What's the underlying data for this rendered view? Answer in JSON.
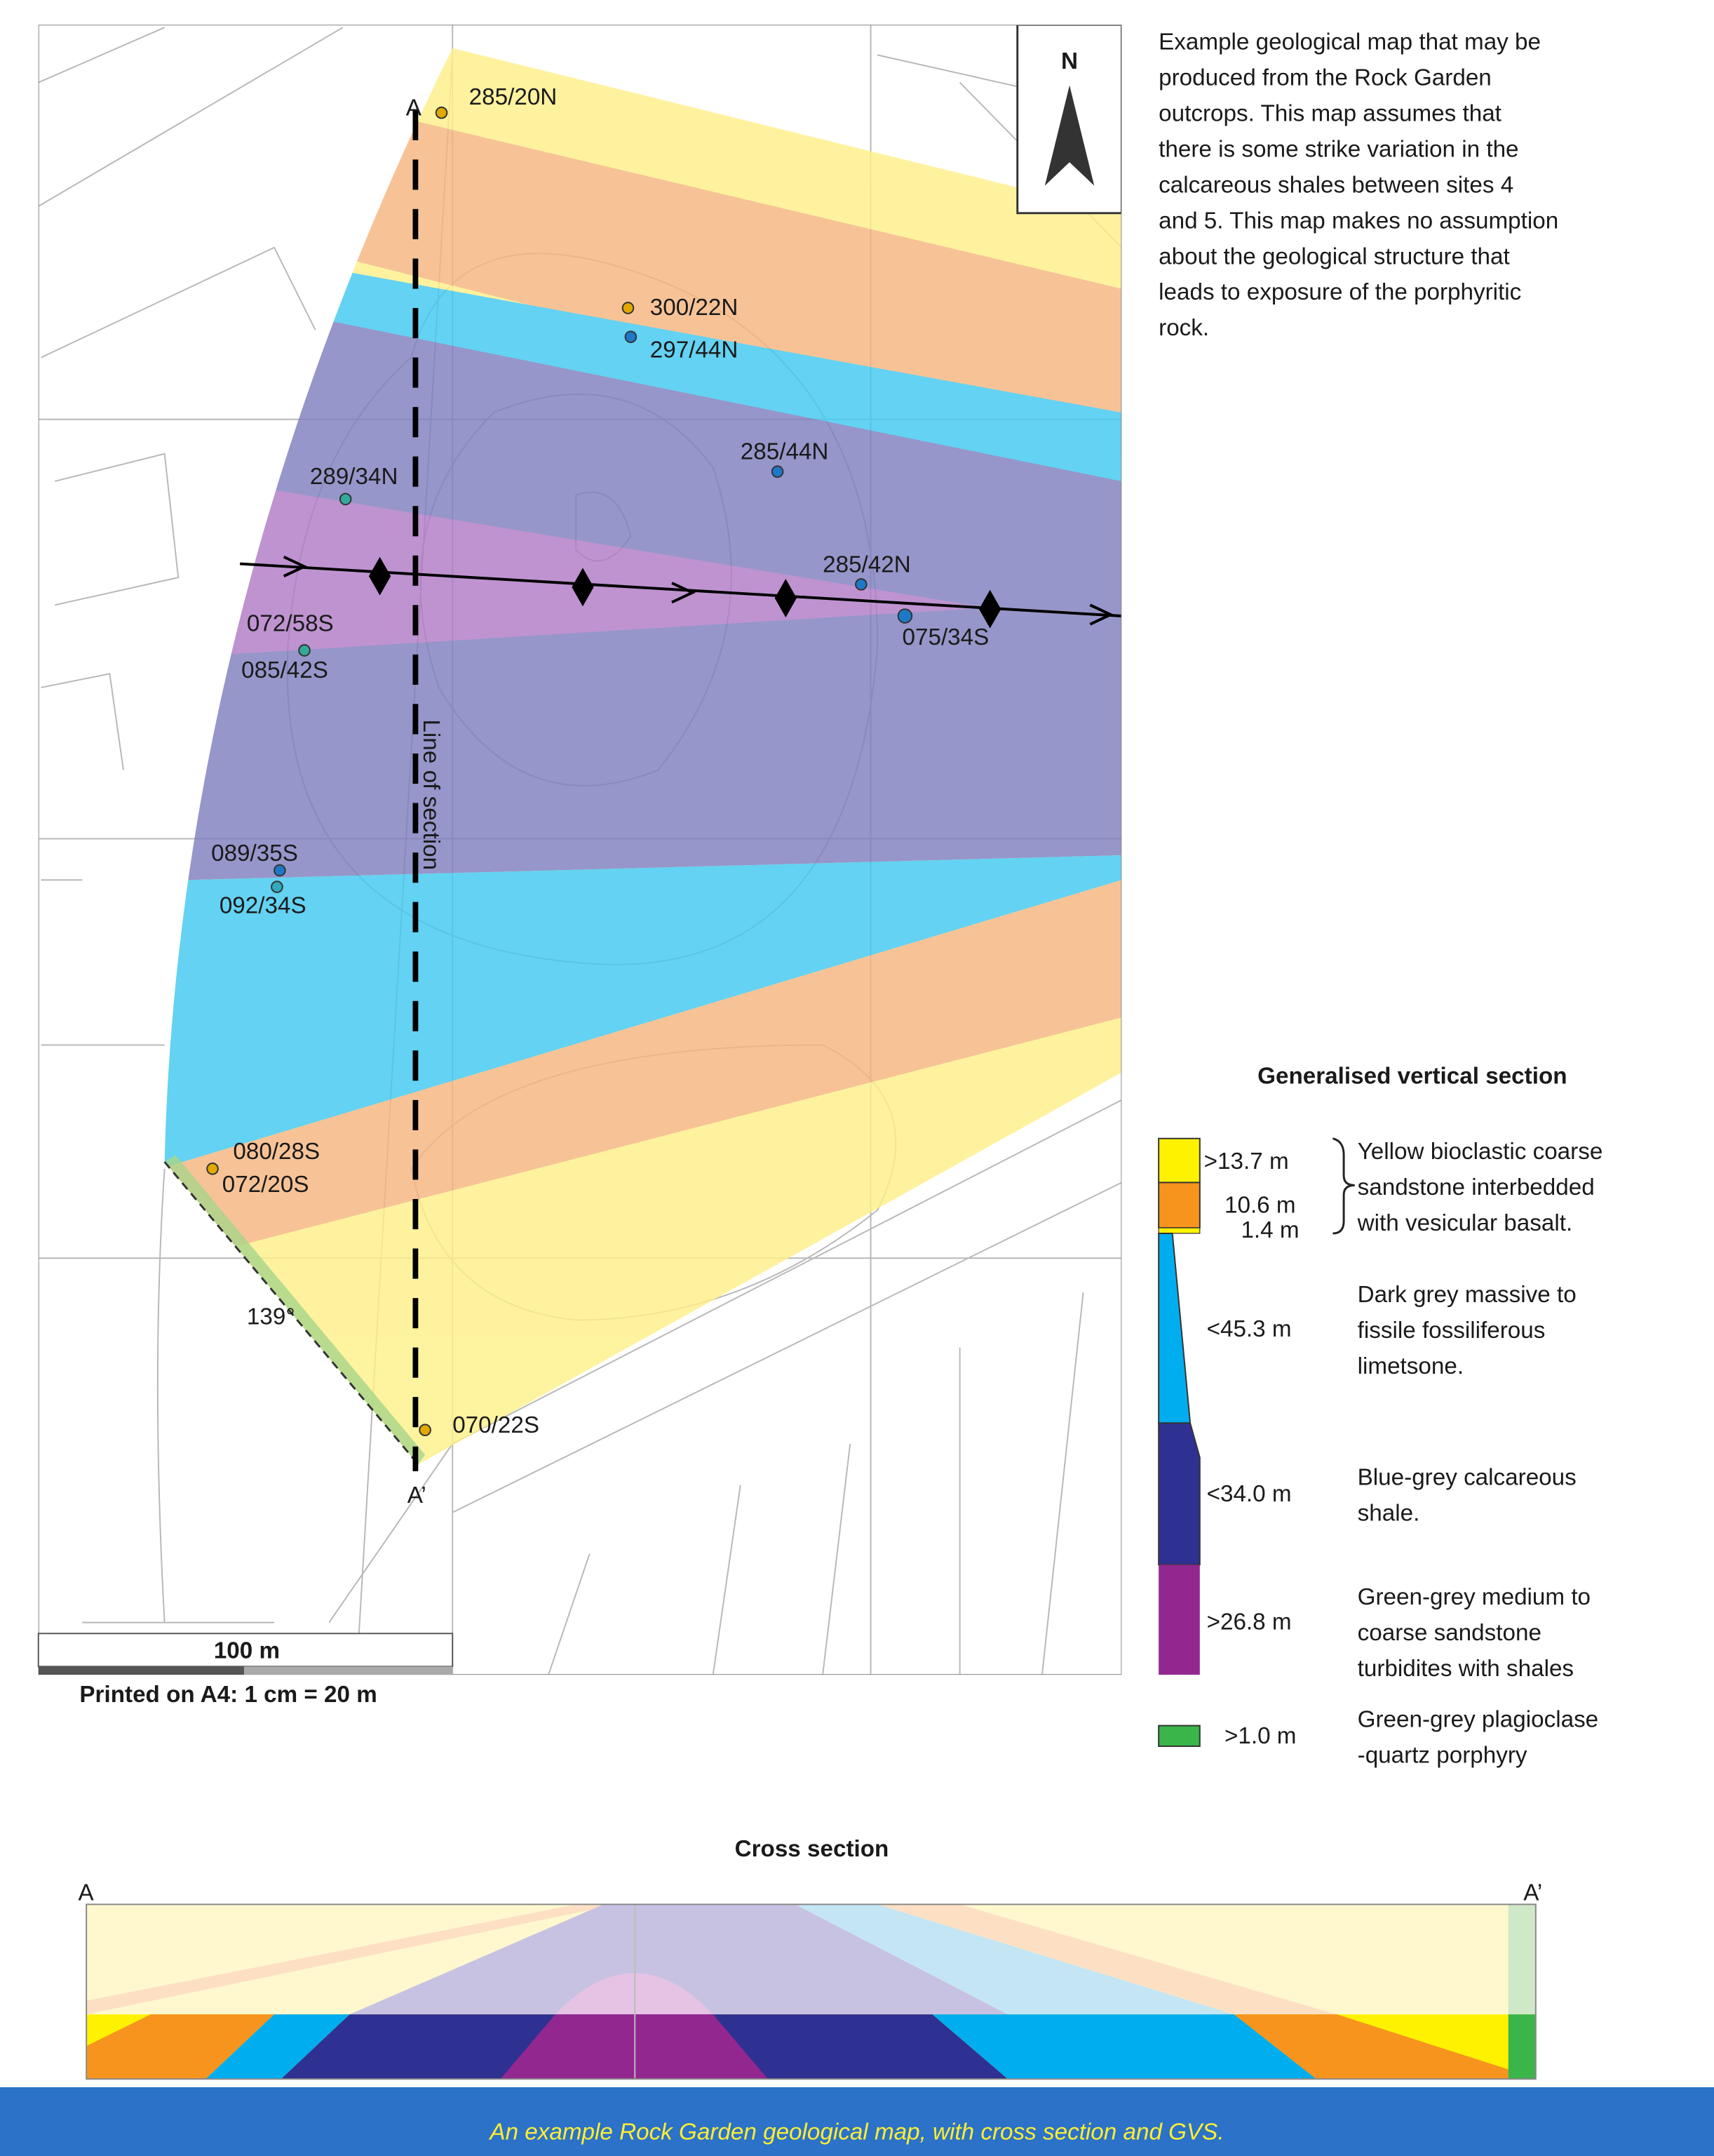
{
  "description": [
    "Example geological map that may be",
    "produced from the Rock Garden",
    "outcrops. This map assumes that",
    "there is some strike variation in the",
    "calcareous shales between sites 4",
    "and 5. This map makes no assumption",
    "about the geological structure that",
    "leads to exposure of the porphyritic",
    "rock."
  ],
  "map": {
    "north": "N",
    "section_start": "A",
    "section_end": "A’",
    "line_of_section": "Line of section",
    "angle": "139°",
    "measurements": [
      "285/20N",
      "300/22N",
      "297/44N",
      "285/44N",
      "289/34N",
      "285/42N",
      "075/34S",
      "072/58S",
      "085/42S",
      "089/35S",
      "092/34S",
      "080/28S",
      "072/20S",
      "070/22S"
    ]
  },
  "scale_bar": {
    "label": "100 m",
    "note": "Printed on A4: 1 cm = 20 m"
  },
  "gvs": {
    "title": "Generalised vertical section",
    "thicknesses": [
      ">13.7 m",
      "10.6 m",
      "1.4 m",
      "<45.3 m",
      "<34.0 m",
      ">26.8 m",
      ">1.0 m"
    ],
    "descriptions": [
      [
        "Yellow bioclastic coarse",
        "sandstone interbedded",
        "with vesicular basalt."
      ],
      [
        "Dark grey massive to",
        "fissile fossiliferous",
        "limetsone."
      ],
      [
        "Blue-grey calcareous",
        "shale."
      ],
      [
        "Green-grey medium to",
        "coarse sandstone",
        "turbidites with shales"
      ],
      [
        "Green-grey plagioclase",
        "-quartz porphyry"
      ]
    ]
  },
  "cross_section": {
    "title": "Cross section",
    "start": "A",
    "end": "A’"
  },
  "caption": "An example Rock Garden geological map, with cross section and GVS."
}
